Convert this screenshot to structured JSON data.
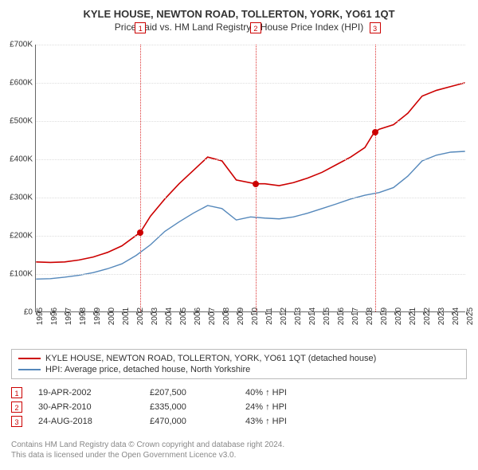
{
  "title": "KYLE HOUSE, NEWTON ROAD, TOLLERTON, YORK, YO61 1QT",
  "subtitle": "Price paid vs. HM Land Registry's House Price Index (HPI)",
  "chart": {
    "type": "line",
    "background_color": "#ffffff",
    "grid_color": "#dddddd",
    "axis_color": "#666666",
    "ylim": [
      0,
      700000
    ],
    "ytick_step": 100000,
    "ytick_labels": [
      "£0",
      "£100K",
      "£200K",
      "£300K",
      "£400K",
      "£500K",
      "£600K",
      "£700K"
    ],
    "xlim": [
      1995,
      2025
    ],
    "xtick_step": 1,
    "xtick_labels": [
      "1995",
      "1996",
      "1997",
      "1998",
      "1999",
      "2000",
      "2001",
      "2002",
      "2003",
      "2004",
      "2005",
      "2006",
      "2007",
      "2008",
      "2009",
      "2010",
      "2011",
      "2012",
      "2013",
      "2014",
      "2015",
      "2016",
      "2017",
      "2018",
      "2019",
      "2020",
      "2021",
      "2022",
      "2023",
      "2024",
      "2025"
    ],
    "label_fontsize": 10,
    "title_fontsize": 13,
    "series": [
      {
        "key": "property",
        "color": "#cc0000",
        "line_width": 1.6,
        "points": [
          [
            1995,
            130000
          ],
          [
            1996,
            128500
          ],
          [
            1997,
            130000
          ],
          [
            1998,
            135000
          ],
          [
            1999,
            143000
          ],
          [
            2000,
            155000
          ],
          [
            2001,
            172000
          ],
          [
            2002.29,
            207500
          ],
          [
            2003,
            250000
          ],
          [
            2004,
            295000
          ],
          [
            2005,
            335000
          ],
          [
            2006,
            370000
          ],
          [
            2007,
            405000
          ],
          [
            2008,
            395000
          ],
          [
            2009,
            345000
          ],
          [
            2010.33,
            335000
          ],
          [
            2011,
            335000
          ],
          [
            2012,
            330000
          ],
          [
            2013,
            338000
          ],
          [
            2014,
            350000
          ],
          [
            2015,
            365000
          ],
          [
            2016,
            385000
          ],
          [
            2017,
            405000
          ],
          [
            2018,
            430000
          ],
          [
            2018.65,
            470000
          ],
          [
            2019,
            478000
          ],
          [
            2020,
            490000
          ],
          [
            2021,
            520000
          ],
          [
            2022,
            565000
          ],
          [
            2023,
            580000
          ],
          [
            2024,
            590000
          ],
          [
            2025,
            600000
          ]
        ]
      },
      {
        "key": "hpi",
        "color": "#5588bb",
        "line_width": 1.4,
        "points": [
          [
            1995,
            85000
          ],
          [
            1996,
            86000
          ],
          [
            1997,
            90000
          ],
          [
            1998,
            95000
          ],
          [
            1999,
            102000
          ],
          [
            2000,
            112000
          ],
          [
            2001,
            125000
          ],
          [
            2002,
            147000
          ],
          [
            2003,
            175000
          ],
          [
            2004,
            210000
          ],
          [
            2005,
            235000
          ],
          [
            2006,
            258000
          ],
          [
            2007,
            278000
          ],
          [
            2008,
            270000
          ],
          [
            2009,
            240000
          ],
          [
            2010,
            248000
          ],
          [
            2011,
            245000
          ],
          [
            2012,
            243000
          ],
          [
            2013,
            248000
          ],
          [
            2014,
            258000
          ],
          [
            2015,
            270000
          ],
          [
            2016,
            282000
          ],
          [
            2017,
            295000
          ],
          [
            2018,
            305000
          ],
          [
            2019,
            312000
          ],
          [
            2020,
            325000
          ],
          [
            2021,
            355000
          ],
          [
            2022,
            395000
          ],
          [
            2023,
            410000
          ],
          [
            2024,
            418000
          ],
          [
            2025,
            420000
          ]
        ]
      }
    ],
    "markers": [
      {
        "index": 1,
        "x": 2002.29,
        "y": 207500
      },
      {
        "index": 2,
        "x": 2010.33,
        "y": 335000
      },
      {
        "index": 3,
        "x": 2018.65,
        "y": 470000
      }
    ],
    "marker_line_color": "#dd3333",
    "marker_box_color": "#cc0000",
    "marker_dot_color": "#cc0000"
  },
  "legend": {
    "items": [
      {
        "color": "#cc0000",
        "label": "KYLE HOUSE, NEWTON ROAD, TOLLERTON, YORK, YO61 1QT (detached house)"
      },
      {
        "color": "#5588bb",
        "label": "HPI: Average price, detached house, North Yorkshire"
      }
    ]
  },
  "sales": [
    {
      "idx": "1",
      "date": "19-APR-2002",
      "price": "£207,500",
      "delta": "40% ↑ HPI"
    },
    {
      "idx": "2",
      "date": "30-APR-2010",
      "price": "£335,000",
      "delta": "24% ↑ HPI"
    },
    {
      "idx": "3",
      "date": "24-AUG-2018",
      "price": "£470,000",
      "delta": "43% ↑ HPI"
    }
  ],
  "footnote": {
    "line1": "Contains HM Land Registry data © Crown copyright and database right 2024.",
    "line2": "This data is licensed under the Open Government Licence v3.0."
  }
}
